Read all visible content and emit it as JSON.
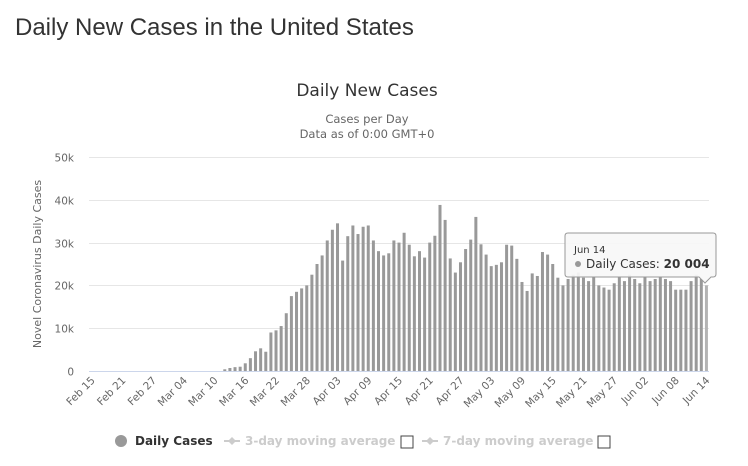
{
  "page": {
    "title": "Daily New Cases in the United States"
  },
  "chart_data": {
    "type": "bar",
    "title": "Daily New Cases",
    "subtitle": "Cases per Day",
    "subtitle2": "Data as of 0:00 GMT+0",
    "xlabel": "",
    "ylabel": "Novel Coronavirus Daily Cases",
    "ylim": [
      0,
      50000
    ],
    "yticks": [
      0,
      10000,
      20000,
      30000,
      40000,
      50000
    ],
    "ytick_labels": [
      "0",
      "10k",
      "20k",
      "30k",
      "40k",
      "50k"
    ],
    "xtick_labels": [
      "Feb 15",
      "Feb 21",
      "Feb 27",
      "Mar 04",
      "Mar 10",
      "Mar 16",
      "Mar 22",
      "Mar 28",
      "Apr 03",
      "Apr 09",
      "Apr 15",
      "Apr 21",
      "Apr 27",
      "May 03",
      "May 09",
      "May 15",
      "May 21",
      "May 27",
      "Jun 02",
      "Jun 08",
      "Jun 14"
    ],
    "grid": true,
    "bar_color": "#999999",
    "start_date": "Feb 15",
    "end_date": "Jun 14",
    "series": [
      {
        "name": "Daily Cases",
        "values": [
          0,
          0,
          0,
          0,
          0,
          0,
          0,
          0,
          0,
          0,
          0,
          0,
          0,
          0,
          0,
          0,
          0,
          0,
          0,
          0,
          0,
          0,
          0,
          0,
          0,
          0,
          400,
          700,
          900,
          1000,
          1800,
          3000,
          4600,
          5300,
          4500,
          9000,
          9500,
          10500,
          13500,
          17500,
          18500,
          19300,
          20000,
          22500,
          25000,
          27000,
          30500,
          33000,
          34500,
          25800,
          31500,
          34000,
          32000,
          33700,
          34000,
          30500,
          28000,
          27000,
          27500,
          30500,
          30000,
          32300,
          29500,
          26800,
          28000,
          26500,
          30000,
          31600,
          38800,
          35300,
          26300,
          23000,
          25400,
          28500,
          30700,
          36000,
          29600,
          27200,
          24500,
          24800,
          25400,
          29500,
          29300,
          26200,
          20800,
          18700,
          22800,
          22200,
          27800,
          27200,
          25000,
          21800,
          20000,
          21500,
          22500,
          23000,
          21800,
          21000,
          22000,
          20000,
          19500,
          19000,
          20500,
          22000,
          21000,
          22500,
          21500,
          20500,
          22000,
          21000,
          21500,
          22000,
          21500,
          21000,
          19000,
          19000,
          19000,
          21000,
          22500,
          21500,
          20004
        ]
      },
      {
        "name": "3-day moving average",
        "visible": false
      },
      {
        "name": "7-day moving average",
        "visible": false
      }
    ],
    "legend": {
      "placement": "bottom-center",
      "items": [
        "Daily Cases",
        "3-day moving average",
        "7-day moving average"
      ]
    },
    "tooltip": {
      "date": "Jun 14",
      "label": "Daily Cases: ",
      "value": "20 004"
    }
  }
}
